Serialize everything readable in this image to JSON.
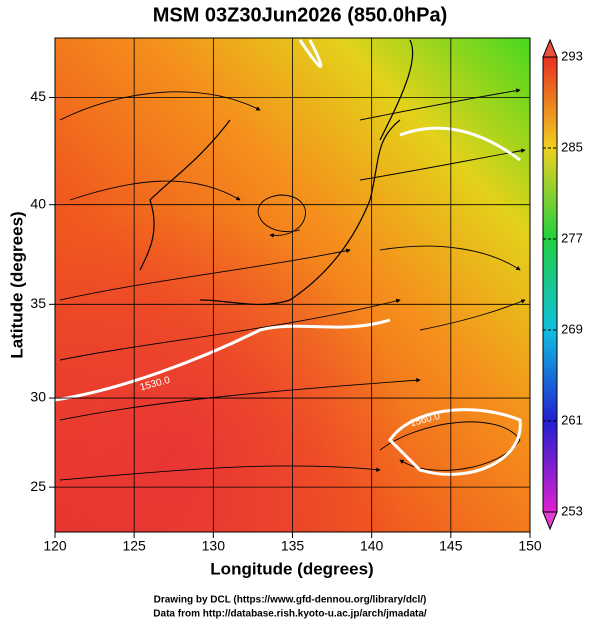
{
  "chart_data": {
    "type": "map",
    "title": "MSM 03Z30Jun2026 (850.0hPa)",
    "x_label": "Longitude (degrees)",
    "y_label": "Latitude (degrees)",
    "xlim": [
      120,
      150
    ],
    "ylim": [
      22.4,
      47.6
    ],
    "xticks": [
      120,
      125,
      130,
      135,
      140,
      145,
      150
    ],
    "yticks": [
      25,
      30,
      35,
      40,
      45
    ],
    "projection": "mercator",
    "grid": true,
    "colorbar": {
      "lim": [
        253,
        293
      ],
      "ticks": [
        253,
        261,
        269,
        277,
        285,
        293
      ]
    },
    "annotations": [
      "1530.0",
      "1560.0"
    ],
    "footer": [
      "Drawing by DCL (https://www.gfd-dennou.org/library/dcl/)",
      "Data from http://database.rish.kyoto-u.ac.jp/arch/jmadata/"
    ]
  }
}
